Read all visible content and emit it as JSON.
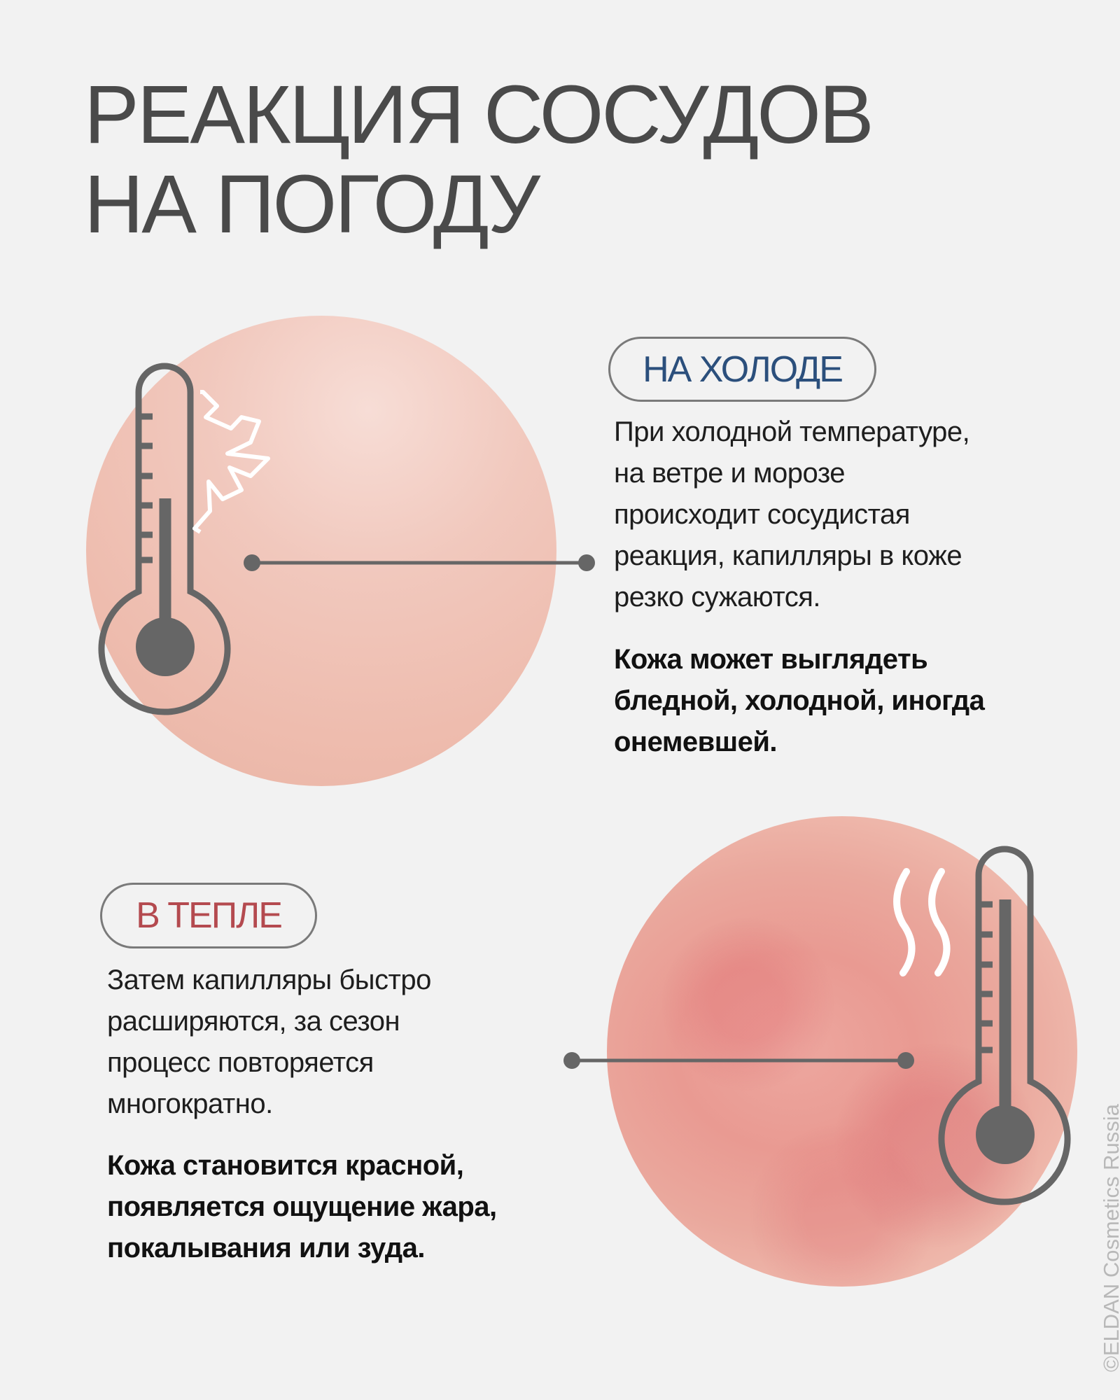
{
  "title": {
    "line1": "РЕАКЦИЯ СОСУДОВ",
    "line2": "НА ПОГОДУ"
  },
  "cold": {
    "badge": "НА ХОЛОДЕ",
    "badge_color": "#2b4f7c",
    "text_lines": [
      "При холодной температуре,",
      "на ветре и морозе",
      "происходит сосудистая",
      "реакция, капилляры в коже",
      "резко сужаются."
    ],
    "bold_lines": [
      "Кожа может выглядеть",
      "бледной, холодной, иногда",
      "онемевшей."
    ],
    "icons": [
      "thermometer-icon",
      "snowflake-icon"
    ]
  },
  "warm": {
    "badge": "В ТЕПЛЕ",
    "badge_color": "#b44a4f",
    "text_lines": [
      "Затем капилляры быстро",
      "расширяются, за сезон",
      "процесс повторяется",
      "многократно."
    ],
    "bold_lines": [
      "Кожа становится красной,",
      "появляется ощущение жара,",
      "покалывания или зуда."
    ],
    "icons": [
      "thermometer-icon",
      "heat-waves-icon"
    ]
  },
  "watermark": "©ELDAN Cosmetics Russia"
}
